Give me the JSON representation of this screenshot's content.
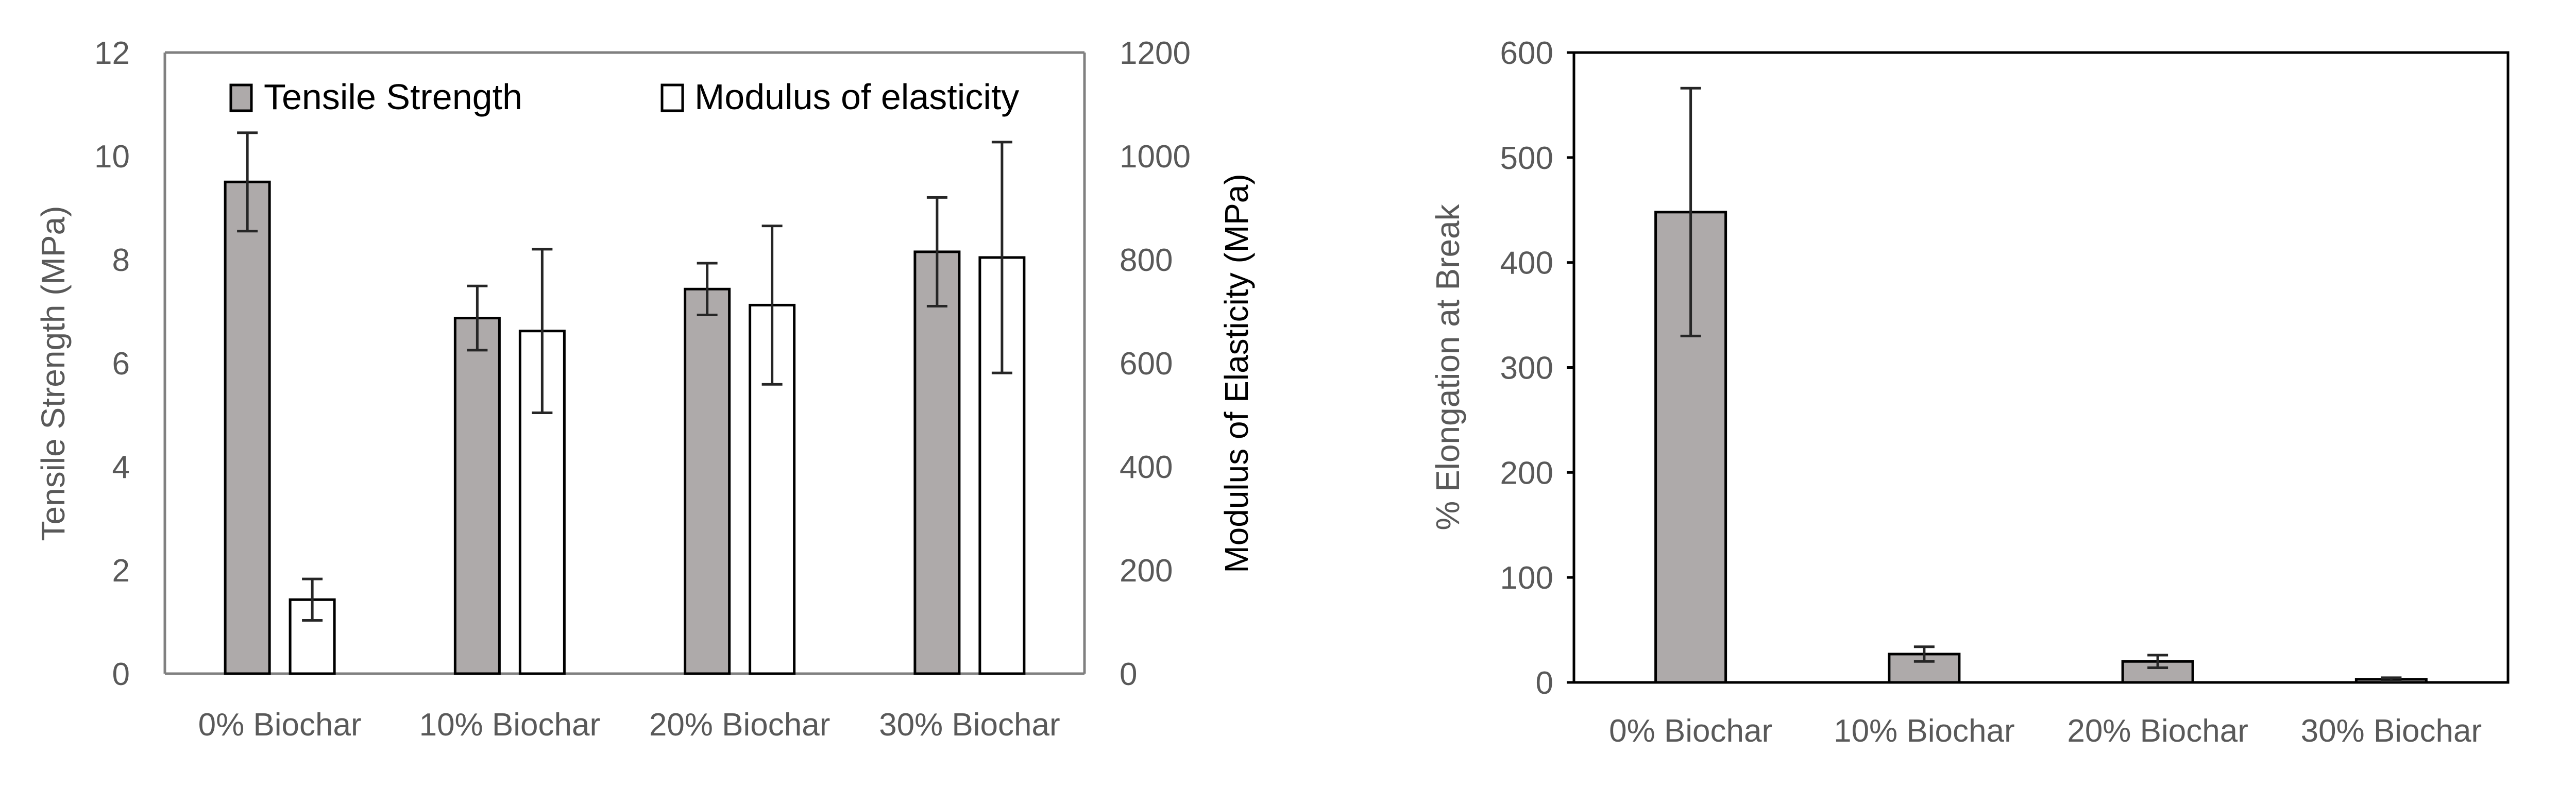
{
  "colors": {
    "tensile_fill": "#aeaaaa",
    "modulus_fill": "#ffffff",
    "bar_stroke": "#000000",
    "axis_gray": "#808080",
    "error_bar": "#262626",
    "text_gray": "#595959"
  },
  "chart_data": [
    {
      "type": "bar",
      "id": "tensile-modulus",
      "categories": [
        "0% Biochar",
        "10% Biochar",
        "20% Biochar",
        "30% Biochar"
      ],
      "series": [
        {
          "name": "Tensile Strength",
          "axis": "left",
          "values": [
            9.5,
            6.87,
            7.43,
            8.15
          ],
          "errors": [
            0.95,
            0.62,
            0.5,
            1.05
          ]
        },
        {
          "name": "Modulus of elasticity",
          "axis": "right",
          "values": [
            143,
            662,
            712,
            804
          ],
          "errors": [
            40,
            158,
            153,
            223
          ]
        }
      ],
      "ylabel": "Tensile Strength (MPa)",
      "y2label": "Modulus of Elasticity (MPa)",
      "ylim": [
        0,
        12
      ],
      "yticks": [
        "0",
        "2",
        "4",
        "6",
        "8",
        "10",
        "12"
      ],
      "y2lim": [
        0,
        1200
      ],
      "y2ticks": [
        "0",
        "200",
        "400",
        "600",
        "800",
        "1000",
        "1200"
      ],
      "legend": "top",
      "grid": false
    },
    {
      "type": "bar",
      "id": "elongation",
      "categories": [
        "0% Biochar",
        "10% Biochar",
        "20% Biochar",
        "30% Biochar"
      ],
      "series": [
        {
          "name": "% Elongation at Break",
          "values": [
            448,
            27,
            20,
            3
          ],
          "errors": [
            118,
            7,
            6,
            1.5
          ]
        }
      ],
      "ylabel": "% Elongation at Break",
      "ylim": [
        0,
        600
      ],
      "yticks": [
        "0",
        "100",
        "200",
        "300",
        "400",
        "500",
        "600"
      ],
      "legend": "none",
      "grid": false
    }
  ]
}
